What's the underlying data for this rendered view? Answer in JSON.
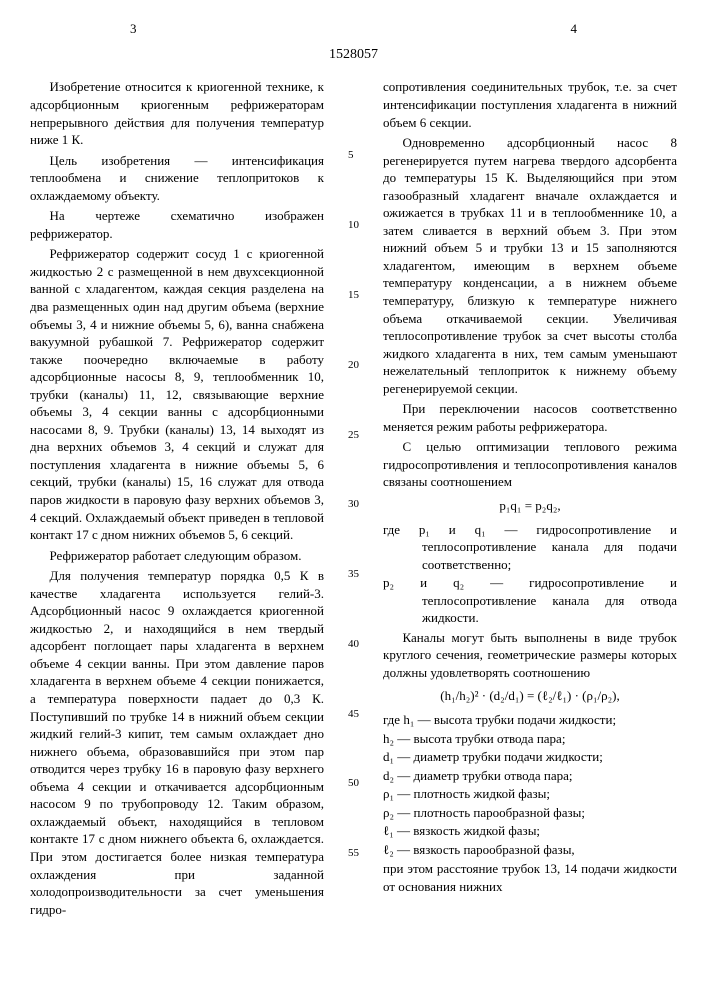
{
  "header": {
    "page_left": "3",
    "page_right": "4",
    "doc_number": "1528057"
  },
  "left": {
    "p1": "Изобретение относится к криогенной технике, к адсорбционным криогенным рефрижераторам непрерывного действия для получения температур ниже 1 К.",
    "p2": "Цель изобретения — интенсификация теплообмена и снижение теплопритоков к охлаждаемому объекту.",
    "p3": "На чертеже схематично изображен рефрижератор.",
    "p4": "Рефрижератор содержит сосуд 1 с криогенной жидкостью 2 с размещенной в нем двухсекционной ванной с хладагентом, каждая секция разделена на два размещенных один над другим объема (верхние объемы 3, 4 и нижние объемы 5, 6), ванна снабжена вакуумной рубашкой 7. Рефрижератор содержит также поочередно включаемые в работу адсорбционные насосы 8, 9, теплообменник 10, трубки (каналы) 11, 12, связывающие верхние объемы 3, 4 секции ванны с адсорбционными насосами 8, 9. Трубки (каналы) 13, 14 выходят из дна верхних объемов 3, 4 секций и служат для поступления хладагента в нижние объемы 5, 6 секций, трубки (каналы) 15, 16 служат для отвода паров жидкости в паровую фазу верхних объемов 3, 4 секций. Охлаждаемый объект приведен в тепловой контакт 17 с дном нижних объемов 5, 6 секций.",
    "p5": "Рефрижератор работает следующим образом.",
    "p6": "Для получения температур порядка 0,5 К в качестве хладагента используется гелий-3. Адсорбционный насос 9 охлаждается криогенной жидкостью 2, и находящийся в нем твердый адсорбент поглощает пары хладагента в верхнем объеме 4 секции ванны. При этом давление паров хладагента в верхнем объеме 4 секции понижается, а температура поверхности падает до 0,3 К. Поступивший по трубке 14 в нижний объем секции жидкий гелий-3 кипит, тем самым охлаждает дно нижнего объема, образовавшийся при этом пар отводится через трубку 16 в паровую фазу верхнего объема 4 секции и откачивается адсорбционным насосом 9 по трубопроводу 12. Таким образом, охлаждаемый объект, находящийся в тепловом контакте 17 с дном нижнего объекта 6, охлаждается. При этом достигается более низкая температура охлаждения при заданной холодопроизводительности за счет уменьшения гидро-"
  },
  "right": {
    "p1": "сопротивления соединительных трубок, т.е. за счет интенсификации поступления хладагента в нижний объем 6 секции.",
    "p2": "Одновременно адсорбционный насос 8 регенерируется путем нагрева твердого адсорбента до температуры 15 К. Выделяющийся при этом газообразный хладагент вначале охлаждается и ожижается в трубках 11 и в теплообменнике 10, а затем сливается в верхний объем 3. При этом нижний объем 5 и трубки 13 и 15 заполняются хладагентом, имеющим в верхнем объеме температуру конденсации, а в нижнем объеме температуру, близкую к температуре нижнего объема откачиваемой секции. Увеличивая теплосопротивление трубок за счет высоты столба жидкого хладагента в них, тем самым уменьшают нежелательный теплоприток к нижнему объему регенерируемой секции.",
    "p3": "При переключении насосов соответственно меняется режим работы рефрижератора.",
    "p4": "С целью оптимизации теплового режима гидросопротивления и теплосопротивления каналов связаны соотношением",
    "formula1": "p₁q₁ = p₂q₂,",
    "def1": "где p₁ и q₁ — гидросопротивление и теплосопротивление канала для подачи соответственно;",
    "def2": "p₂ и q₂ — гидросопротивление и теплосопротивление канала для отвода жидкости.",
    "p5": "Каналы могут быть выполнены в виде трубок круглого сечения, геометрические размеры которых должны удовлетворять соотношению",
    "formula2": "(h₁/h₂)² · (d₂/d₁) = (ℓ₂/ℓ₁) · (ρ₁/ρ₂),",
    "def3": "где h₁ — высота трубки подачи жидкости;",
    "def4": "h₂ — высота трубки отвода пара;",
    "def5": "d₁ — диаметр трубки подачи жидкости;",
    "def6": "d₂ — диаметр трубки отвода пара;",
    "def7": "ρ₁ — плотность жидкой фазы;",
    "def8": "ρ₂ — плотность парообразной фазы;",
    "def9": "ℓ₁ — вязкость жидкой фазы;",
    "def10": "ℓ₂ — вязкость парообразной фазы,",
    "p6": "при этом расстояние трубок 13, 14 подачи жидкости от основания нижних"
  },
  "line_marks": [
    "5",
    "10",
    "15",
    "20",
    "25",
    "30",
    "35",
    "40",
    "45",
    "50",
    "55"
  ]
}
